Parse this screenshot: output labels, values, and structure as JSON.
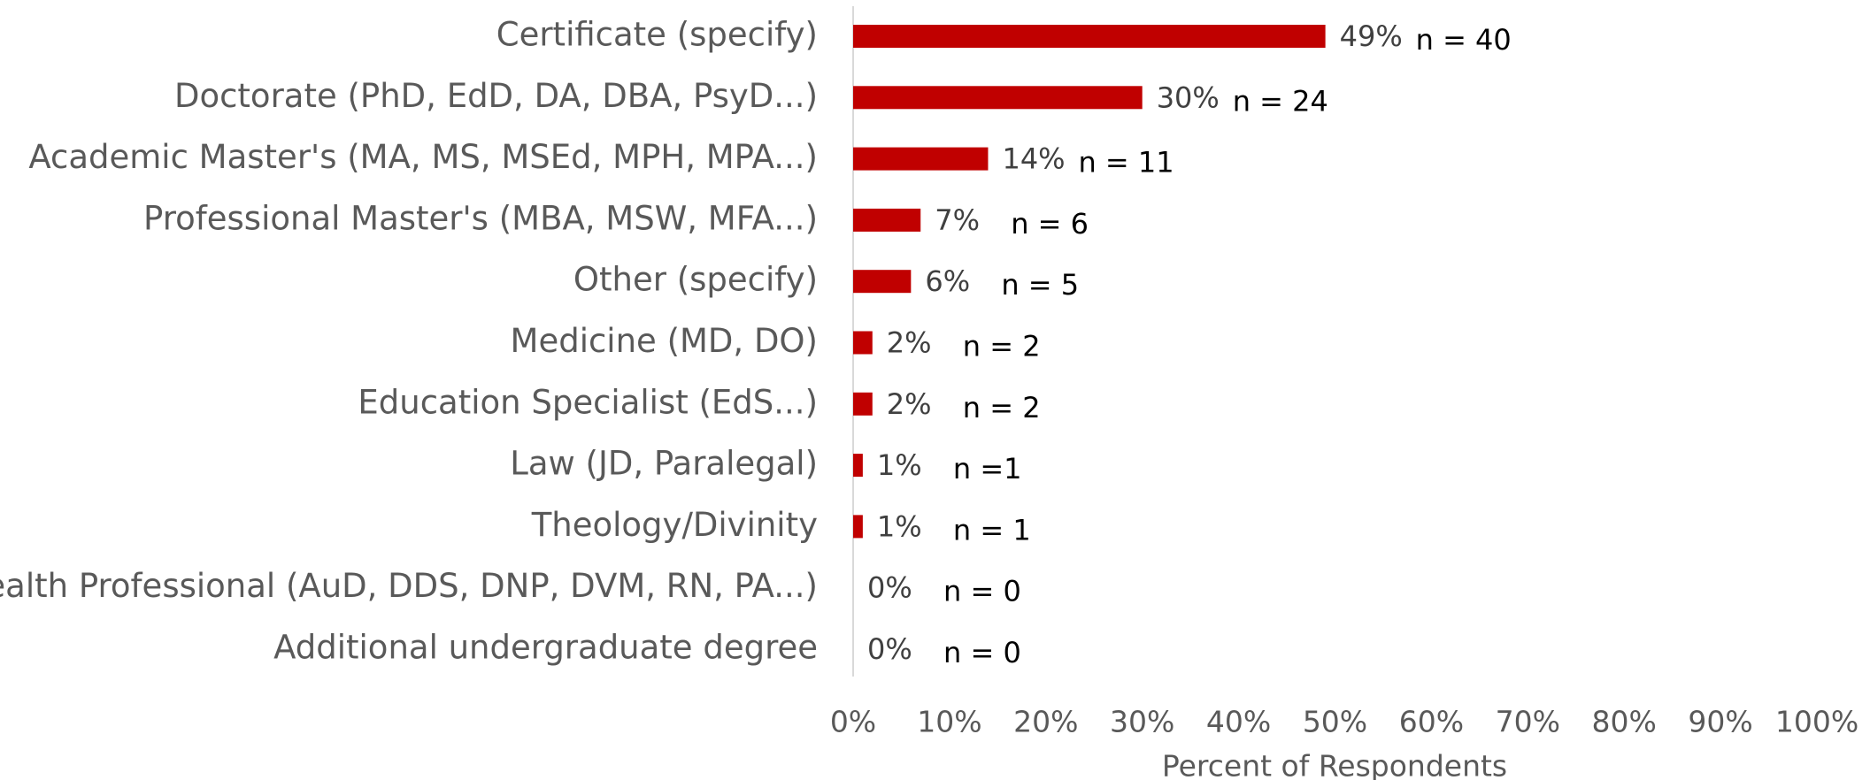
{
  "chart_data": {
    "type": "barh",
    "categories": [
      "Certificate (specify)",
      "Doctorate (PhD, EdD, DA, DBA, PsyD...)",
      "Academic Master's (MA, MS, MSEd, MPH, MPA...)",
      "Professional Master's (MBA, MSW, MFA...)",
      "Other (specify)",
      "Medicine (MD, DO)",
      "Education Specialist (EdS...)",
      "Law (JD, Paralegal)",
      "Theology/Divinity",
      "Health Professional (AuD, DDS, DNP, DVM, RN, PA...)",
      "Additional undergraduate degree"
    ],
    "values": [
      49,
      30,
      14,
      7,
      6,
      2,
      2,
      1,
      1,
      0,
      0
    ],
    "value_labels": [
      "49%",
      "30%",
      "14%",
      "7%",
      "6%",
      "2%",
      "2%",
      "1%",
      "1%",
      "0%",
      "0%"
    ],
    "n_labels": [
      "n = 40",
      "n = 24",
      "n = 11",
      "n = 6",
      "n = 5",
      "n = 2",
      "n = 2",
      "n =1",
      "n = 1",
      "n = 0",
      "n = 0"
    ],
    "color": "#c00000",
    "xlabel": "Percent of Respondents",
    "xlim": [
      0,
      100
    ],
    "xticks": [
      {
        "value": 0,
        "label": "0%"
      },
      {
        "value": 10,
        "label": "10%"
      },
      {
        "value": 20,
        "label": "20%"
      },
      {
        "value": 30,
        "label": "30%"
      },
      {
        "value": 40,
        "label": "40%"
      },
      {
        "value": 50,
        "label": "50%"
      },
      {
        "value": 60,
        "label": "60%"
      },
      {
        "value": 70,
        "label": "70%"
      },
      {
        "value": 80,
        "label": "80%"
      },
      {
        "value": 90,
        "label": "90%"
      },
      {
        "value": 100,
        "label": "100%"
      }
    ]
  }
}
